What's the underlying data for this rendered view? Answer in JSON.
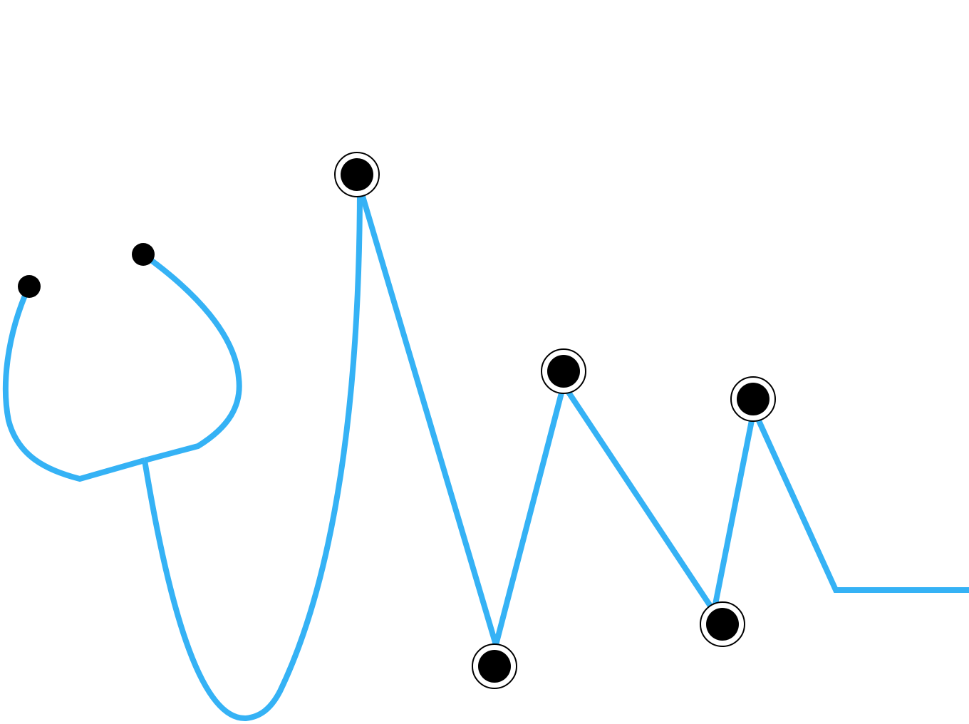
{
  "illustration": {
    "subject": "stethoscope-heartbeat-icon",
    "colors": {
      "line": "#35b2f5",
      "dot": "#000000",
      "ring": "#ffffff",
      "background": "#ffffff"
    }
  }
}
